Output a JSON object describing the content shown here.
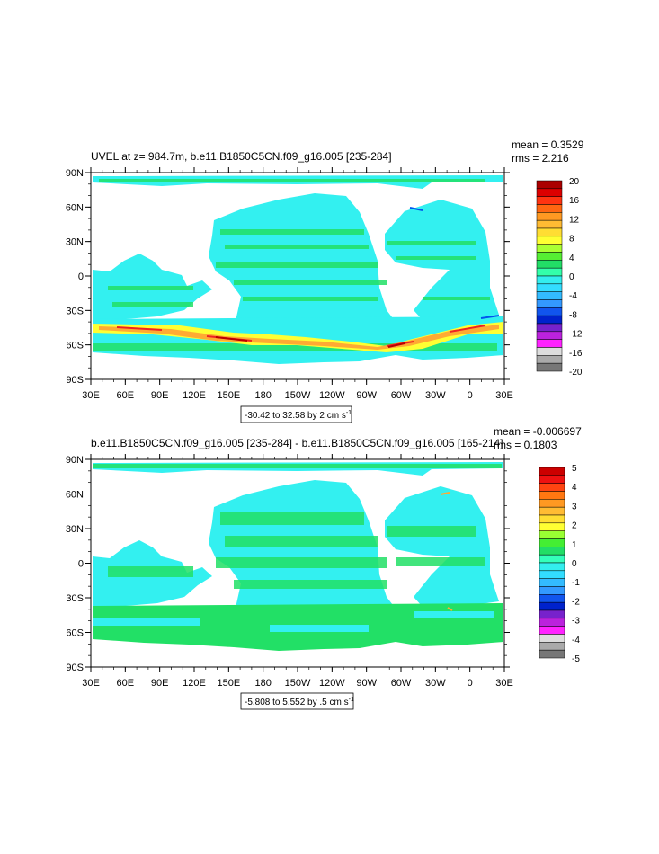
{
  "colors": {
    "land": "#ffffff",
    "ocean_base": "#33f0f0",
    "green": "#22e066",
    "light_green": "#66ee44",
    "yellow": "#ffff33",
    "orange": "#ffaa33",
    "red": "#ee2222",
    "dark_red": "#bb0000",
    "blue": "#0055ee",
    "purple": "#9922cc"
  },
  "panels": [
    {
      "title": "UVEL at z= 984.7m, b.e11.B1850C5CN.f09_g16.005 [235-284]",
      "mean_text": "mean = 0.3529",
      "rms_text": "rms = 2.216",
      "range_text": "-30.42 to 32.58 by 2 cm s",
      "range_sup": "-1",
      "lat_labels": [
        "90N",
        "60N",
        "30N",
        "0",
        "30S",
        "60S",
        "90S"
      ],
      "lon_labels": [
        "30E",
        "60E",
        "90E",
        "120E",
        "150E",
        "180",
        "150W",
        "120W",
        "90W",
        "60W",
        "30W",
        "0",
        "30E"
      ],
      "colorbar": {
        "labels": [
          "20",
          "16",
          "12",
          "8",
          "4",
          "0",
          "-4",
          "-8",
          "-12",
          "-16",
          "-20"
        ],
        "colors": [
          "#aa0000",
          "#dd0000",
          "#ff3311",
          "#ff6611",
          "#ff9922",
          "#ffbb33",
          "#ffdd33",
          "#ffff33",
          "#aaff33",
          "#55ee33",
          "#22dd66",
          "#33ffaa",
          "#33eeee",
          "#33ddff",
          "#33bbff",
          "#3399ff",
          "#1155ee",
          "#0022cc",
          "#7722cc",
          "#bb22dd",
          "#ff22ff",
          "#dddddd",
          "#aaaaaa",
          "#777777"
        ]
      }
    },
    {
      "title": "b.e11.B1850C5CN.f09_g16.005 [235-284] - b.e11.B1850C5CN.f09_g16.005 [165-214]",
      "mean_text": "mean = -0.006697",
      "rms_text": "rms = 0.1803",
      "range_text": "-5.808 to 5.552 by .5 cm s",
      "range_sup": "-1",
      "lat_labels": [
        "90N",
        "60N",
        "30N",
        "0",
        "30S",
        "60S",
        "90S"
      ],
      "lon_labels": [
        "30E",
        "60E",
        "90E",
        "120E",
        "150E",
        "180",
        "150W",
        "120W",
        "90W",
        "60W",
        "30W",
        "0",
        "30E"
      ],
      "colorbar": {
        "labels": [
          "5",
          "4",
          "3",
          "2",
          "1",
          "0",
          "-1",
          "-2",
          "-3",
          "-4",
          "-5"
        ],
        "colors": [
          "#cc0000",
          "#ee1111",
          "#ff4411",
          "#ff7711",
          "#ff9922",
          "#ffbb33",
          "#ffdd33",
          "#ffff33",
          "#99ff33",
          "#44ee33",
          "#22dd66",
          "#33ffbb",
          "#33eeee",
          "#33ddff",
          "#33bbff",
          "#3399ff",
          "#1155ee",
          "#0022cc",
          "#7722cc",
          "#bb22dd",
          "#ff22ff",
          "#dddddd",
          "#aaaaaa",
          "#777777"
        ]
      }
    }
  ]
}
